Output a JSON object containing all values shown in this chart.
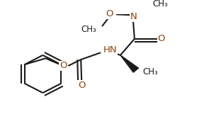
{
  "bg_color": "#ffffff",
  "line_color": "#1a1a1a",
  "atom_color": "#8B4513",
  "bond_lw": 1.5,
  "figsize": [
    3.12,
    1.85
  ],
  "dpi": 100,
  "xlim": [
    0,
    3.12
  ],
  "ylim": [
    0,
    1.85
  ]
}
